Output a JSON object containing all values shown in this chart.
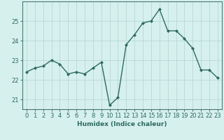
{
  "x": [
    0,
    1,
    2,
    3,
    4,
    5,
    6,
    7,
    8,
    9,
    10,
    11,
    12,
    13,
    14,
    15,
    16,
    17,
    18,
    19,
    20,
    21,
    22,
    23
  ],
  "y": [
    22.4,
    22.6,
    22.7,
    23.0,
    22.8,
    22.3,
    22.4,
    22.3,
    22.6,
    22.9,
    20.7,
    21.1,
    23.8,
    24.3,
    24.9,
    25.0,
    25.6,
    24.5,
    24.5,
    24.1,
    23.6,
    22.5,
    22.5,
    22.1
  ],
  "line_color": "#2e6b5e",
  "marker": "D",
  "markersize": 2.0,
  "linewidth": 1.0,
  "bg_color": "#d6f0ee",
  "grid_color": "#b8d8d4",
  "xlabel": "Humidex (Indice chaleur)",
  "ylim": [
    20.5,
    26.0
  ],
  "yticks": [
    21,
    22,
    23,
    24,
    25
  ],
  "xticks": [
    0,
    1,
    2,
    3,
    4,
    5,
    6,
    7,
    8,
    9,
    10,
    11,
    12,
    13,
    14,
    15,
    16,
    17,
    18,
    19,
    20,
    21,
    22,
    23
  ],
  "xlabel_fontsize": 6.5,
  "tick_fontsize": 6.0,
  "tick_color": "#2e6b5e",
  "axis_color": "#4a7a70"
}
